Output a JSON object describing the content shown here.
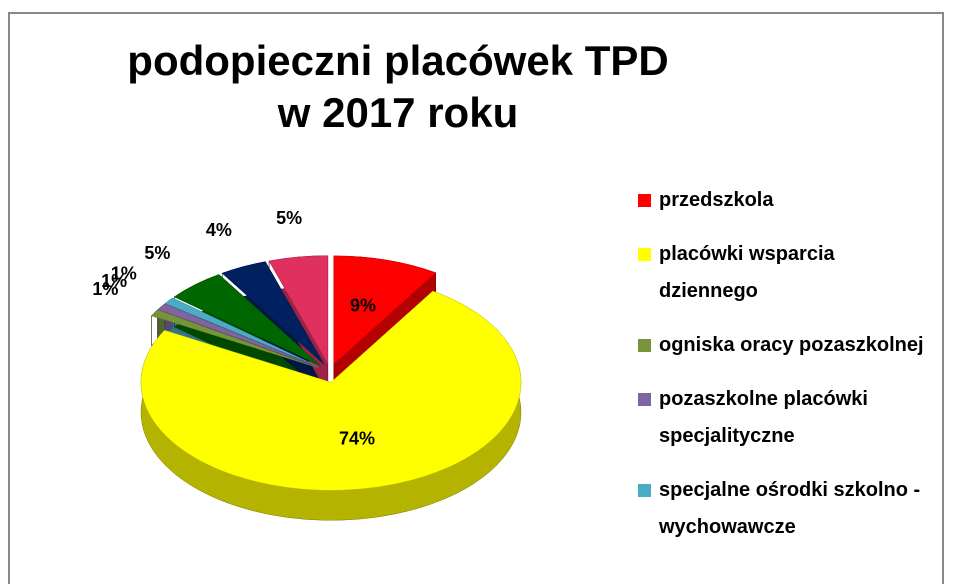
{
  "chart_data": {
    "type": "pie3d",
    "title": "podopieczni placówek TPD",
    "subtitle": "w 2017 roku",
    "categories": [
      "przedszkola",
      "placówki wsparcia dziennego",
      "ogniska oracy pozaszkolnej",
      "pozaszkolne placówki specjalityczne",
      "specjalne ośrodki szkolno - wychowawcze",
      null,
      null,
      null
    ],
    "values": [
      9,
      74,
      1,
      1,
      1,
      5,
      4,
      5
    ],
    "value_labels": [
      "9%",
      "74%",
      "1%",
      "1%",
      "1%",
      "5%",
      "4%",
      "5%"
    ],
    "colors": [
      "#ff0000",
      "#ffff00",
      "#77933c",
      "#8064a2",
      "#4bacc6",
      "#006600",
      "#002060",
      "#e0305f"
    ],
    "legend": "right"
  }
}
